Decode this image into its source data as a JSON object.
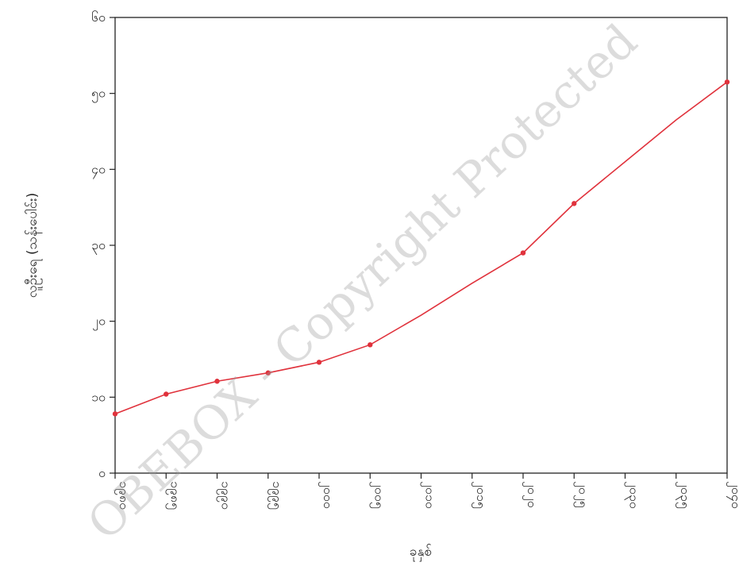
{
  "chart_data": {
    "type": "line",
    "x": [
      "၁၉၈၀",
      "၁၉၈၅",
      "၁၉၉၀",
      "၁၉၉၅",
      "၂၀၀၀",
      "၂၀၀၅",
      "၂၀၁၀",
      "၂၀၁၅",
      "၂၀၂၀",
      "၂၀၂၅",
      "၂၀၃၀",
      "၂၀၃၅",
      "၂၀၄၀"
    ],
    "series": [
      {
        "values": [
          7.8,
          10.4,
          12.1,
          13.2,
          14.6,
          16.9,
          20.8,
          25.0,
          29.0,
          35.5,
          41.0,
          46.5,
          51.5
        ],
        "markers": [
          true,
          true,
          true,
          true,
          true,
          true,
          false,
          false,
          true,
          true,
          false,
          false,
          true
        ],
        "color": "#e0323c"
      }
    ],
    "ylim": [
      0,
      60
    ],
    "yticks": [
      0,
      10,
      20,
      30,
      40,
      50,
      60
    ],
    "ytick_labels": [
      "၀",
      "၁၀",
      "၂၀",
      "၃၀",
      "၄၀",
      "၅၀",
      "၆၀"
    ],
    "xlabel": "ခုနှစ်",
    "ylabel": "လူဦးရေ (သန်းပေါင်း)",
    "grid": false,
    "legend": "none"
  },
  "watermark": "OBEBOX - Copyright Protected"
}
